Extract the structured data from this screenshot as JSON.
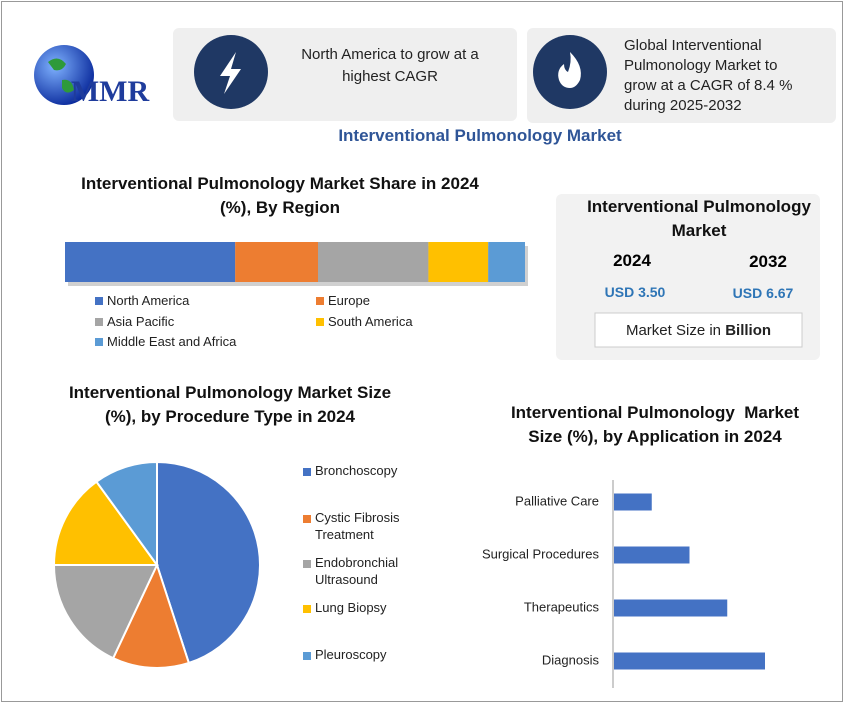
{
  "logo": "MMR",
  "cards": [
    {
      "text": "North America to grow at a highest CAGR"
    },
    {
      "text": "Global Interventional Pulmonology Market to grow at a CAGR of 8.4 % during 2025-2032"
    }
  ],
  "title": "Interventional Pulmonology Market",
  "market_size": {
    "title": "Interventional Pulmonology Market",
    "years": [
      "2024",
      "2032"
    ],
    "values": [
      "USD 3.50",
      "USD 6.67"
    ],
    "note": "Market Size in",
    "unit": "Billion"
  },
  "chart_data": [
    {
      "type": "bar",
      "orientation": "horizontal",
      "stacked": true,
      "title": "Interventional Pulmonology Market Share in 2024 (%), By Region",
      "series": [
        {
          "name": "North America",
          "color": "#4472c4",
          "values": [
            37
          ]
        },
        {
          "name": "Europe",
          "color": "#ed7d31",
          "values": [
            18
          ]
        },
        {
          "name": "Asia Pacific",
          "color": "#a5a5a5",
          "values": [
            24
          ]
        },
        {
          "name": "South America",
          "color": "#ffc000",
          "values": [
            13
          ]
        },
        {
          "name": "Middle East and Africa",
          "color": "#5b9bd5",
          "values": [
            8
          ]
        }
      ]
    },
    {
      "type": "pie",
      "title": "Interventional Pulmonology Market Size (%), by Procedure Type in 2024",
      "categories": [
        "Bronchoscopy",
        "Cystic Fibrosis Treatment",
        "Endobronchial Ultrasound",
        "Lung Biopsy",
        "Pleuroscopy"
      ],
      "values": [
        45,
        12,
        18,
        15,
        10
      ],
      "colors": [
        "#4472c4",
        "#ed7d31",
        "#a5a5a5",
        "#ffc000",
        "#5b9bd5"
      ]
    },
    {
      "type": "bar",
      "orientation": "horizontal",
      "stacked": false,
      "title": "Interventional Pulmonology  Market Size (%), by Application in 2024",
      "categories": [
        "Palliative Care",
        "Surgical Procedures",
        "Therapeutics",
        "Diagnosis"
      ],
      "values": [
        10,
        20,
        30,
        40
      ],
      "color": "#4472c4"
    }
  ]
}
